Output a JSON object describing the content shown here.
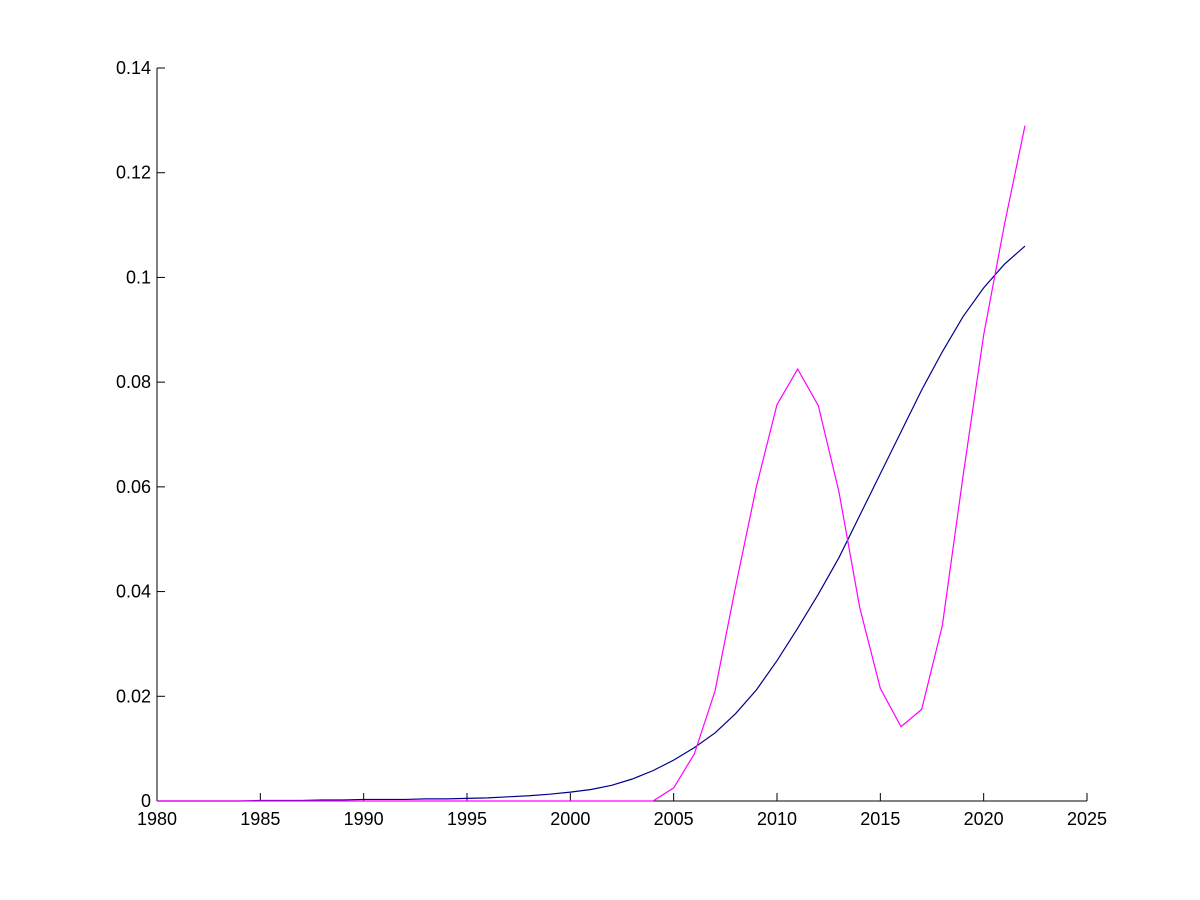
{
  "chart_data": {
    "type": "line",
    "x": [
      1980,
      1981,
      1982,
      1983,
      1984,
      1985,
      1986,
      1987,
      1988,
      1989,
      1990,
      1991,
      1992,
      1993,
      1994,
      1995,
      1996,
      1997,
      1998,
      1999,
      2000,
      2001,
      2002,
      2003,
      2004,
      2005,
      2006,
      2007,
      2008,
      2009,
      2010,
      2011,
      2012,
      2013,
      2014,
      2015,
      2016,
      2017,
      2018,
      2019,
      2020,
      2021,
      2022
    ],
    "series": [
      {
        "color": "#00008b",
        "values": [
          0,
          0,
          0,
          0,
          0,
          0.0001,
          0.0001,
          0.0001,
          0.0002,
          0.0002,
          0.0003,
          0.0003,
          0.0003,
          0.0004,
          0.0004,
          0.0005,
          0.0006,
          0.0008,
          0.001,
          0.0013,
          0.0017,
          0.0022,
          0.003,
          0.0042,
          0.0058,
          0.0078,
          0.0102,
          0.013,
          0.0167,
          0.0212,
          0.0268,
          0.033,
          0.0395,
          0.0465,
          0.0545,
          0.0625,
          0.0705,
          0.0785,
          0.0858,
          0.0925,
          0.098,
          0.1025,
          0.106
        ]
      },
      {
        "color": "#ff00ff",
        "values": [
          0,
          0,
          0,
          0,
          0,
          0,
          0,
          0,
          0,
          0,
          0,
          0,
          0,
          0,
          0,
          0,
          0,
          0,
          0,
          0,
          0,
          0,
          0,
          0,
          0,
          0.0025,
          0.009,
          0.021,
          0.041,
          0.06,
          0.0757,
          0.0825,
          0.0755,
          0.059,
          0.037,
          0.0215,
          0.0142,
          0.0175,
          0.0335,
          0.062,
          0.089,
          0.11,
          0.129
        ]
      }
    ],
    "xlim": [
      1980,
      2025
    ],
    "xticks": [
      1980,
      1985,
      1990,
      1995,
      2000,
      2005,
      2010,
      2015,
      2020,
      2025
    ],
    "ylim": [
      0,
      0.14
    ],
    "yticks": [
      0,
      0.02,
      0.04,
      0.06,
      0.08,
      0.1,
      0.12,
      0.14
    ],
    "grid": false
  }
}
